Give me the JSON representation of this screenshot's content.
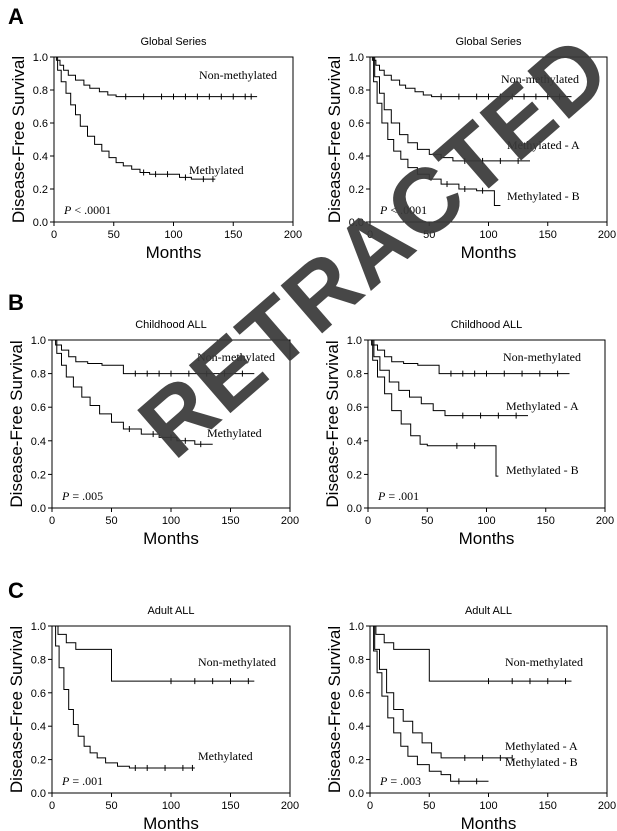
{
  "watermark": "RETRACTED",
  "sections": [
    {
      "letter": "A"
    },
    {
      "letter": "B"
    },
    {
      "letter": "C"
    }
  ],
  "axes": {
    "ylabel": "Disease-Free Survival",
    "xlabel": "Months",
    "xticks": [
      "0",
      "50",
      "100",
      "150",
      "200"
    ],
    "yticks": [
      "0.0",
      "0.2",
      "0.4",
      "0.6",
      "0.8",
      "1.0"
    ]
  },
  "chart_data": [
    {
      "type": "line",
      "title": "Global Series",
      "xlabel": "Months",
      "ylabel": "Disease-Free Survival",
      "xlim": [
        0,
        200
      ],
      "ylim": [
        0,
        1
      ],
      "annotation": {
        "prefix": "P",
        "text": " < .0001"
      },
      "series": [
        {
          "name": "Non-methylated",
          "x": [
            0,
            2,
            5,
            8,
            12,
            18,
            25,
            30,
            38,
            45,
            52,
            170
          ],
          "y": [
            1.0,
            0.98,
            0.95,
            0.92,
            0.89,
            0.86,
            0.83,
            0.81,
            0.79,
            0.77,
            0.76,
            0.76
          ],
          "censored": [
            60,
            75,
            90,
            100,
            110,
            120,
            130,
            140,
            150,
            160,
            165
          ]
        },
        {
          "name": "Methylated",
          "x": [
            0,
            3,
            6,
            10,
            14,
            18,
            22,
            28,
            34,
            40,
            46,
            52,
            58,
            65,
            72,
            80,
            90,
            105,
            115,
            135
          ],
          "y": [
            1.0,
            0.92,
            0.85,
            0.78,
            0.71,
            0.65,
            0.58,
            0.52,
            0.47,
            0.43,
            0.39,
            0.36,
            0.34,
            0.32,
            0.3,
            0.29,
            0.29,
            0.27,
            0.26,
            0.26
          ],
          "censored": [
            75,
            85,
            95,
            110,
            125,
            133
          ]
        }
      ]
    },
    {
      "type": "line",
      "title": "Global Series",
      "xlabel": "Months",
      "ylabel": "Disease-Free Survival",
      "xlim": [
        0,
        200
      ],
      "ylim": [
        0,
        1
      ],
      "annotation": {
        "prefix": "P",
        "text": " < .0001"
      },
      "series": [
        {
          "name": "Non-methylated",
          "x": [
            0,
            2,
            5,
            8,
            12,
            18,
            25,
            30,
            38,
            45,
            52,
            170
          ],
          "y": [
            1.0,
            0.98,
            0.95,
            0.92,
            0.89,
            0.86,
            0.83,
            0.81,
            0.79,
            0.77,
            0.76,
            0.76
          ],
          "censored": [
            60,
            75,
            90,
            100,
            110,
            120,
            130,
            140,
            150,
            160
          ]
        },
        {
          "name": "Methylated - A",
          "x": [
            0,
            4,
            8,
            12,
            18,
            25,
            32,
            40,
            50,
            60,
            70,
            135
          ],
          "y": [
            1.0,
            0.88,
            0.78,
            0.68,
            0.6,
            0.53,
            0.48,
            0.44,
            0.41,
            0.39,
            0.37,
            0.37
          ],
          "censored": [
            80,
            95,
            110,
            125
          ]
        },
        {
          "name": "Methylated - B",
          "x": [
            0,
            3,
            6,
            10,
            15,
            20,
            26,
            32,
            40,
            50,
            60,
            75,
            90,
            105,
            110
          ],
          "y": [
            1.0,
            0.85,
            0.72,
            0.6,
            0.5,
            0.43,
            0.38,
            0.33,
            0.29,
            0.26,
            0.23,
            0.2,
            0.19,
            0.1,
            0.1
          ],
          "censored": [
            65,
            80,
            95
          ]
        }
      ]
    },
    {
      "type": "line",
      "title": "Childhood ALL",
      "xlabel": "Months",
      "ylabel": "Disease-Free Survival",
      "xlim": [
        0,
        200
      ],
      "ylim": [
        0,
        1
      ],
      "annotation": {
        "prefix": "P",
        "text": " = .005"
      },
      "series": [
        {
          "name": "Non-methylated",
          "x": [
            0,
            3,
            8,
            14,
            20,
            30,
            42,
            60,
            170
          ],
          "y": [
            1.0,
            0.97,
            0.94,
            0.9,
            0.87,
            0.86,
            0.85,
            0.8,
            0.8
          ],
          "censored": [
            70,
            80,
            90,
            100,
            115,
            130,
            145,
            160
          ]
        },
        {
          "name": "Methylated",
          "x": [
            0,
            4,
            8,
            12,
            18,
            25,
            32,
            40,
            50,
            60,
            75,
            90,
            105,
            120,
            135
          ],
          "y": [
            1.0,
            0.92,
            0.85,
            0.78,
            0.72,
            0.66,
            0.61,
            0.56,
            0.51,
            0.47,
            0.44,
            0.42,
            0.4,
            0.38,
            0.38
          ],
          "censored": [
            65,
            85,
            100,
            112,
            125
          ]
        }
      ]
    },
    {
      "type": "line",
      "title": "Childhood ALL",
      "xlabel": "Months",
      "ylabel": "Disease-Free Survival",
      "xlim": [
        0,
        200
      ],
      "ylim": [
        0,
        1
      ],
      "annotation": {
        "prefix": "P",
        "text": " = .001"
      },
      "series": [
        {
          "name": "Non-methylated",
          "x": [
            0,
            3,
            8,
            14,
            20,
            30,
            42,
            60,
            170
          ],
          "y": [
            1.0,
            0.97,
            0.94,
            0.9,
            0.87,
            0.86,
            0.85,
            0.8,
            0.8
          ],
          "censored": [
            70,
            80,
            90,
            100,
            115,
            130,
            145,
            160
          ]
        },
        {
          "name": "Methylated - A",
          "x": [
            0,
            5,
            10,
            18,
            26,
            35,
            45,
            55,
            65,
            135
          ],
          "y": [
            1.0,
            0.9,
            0.82,
            0.75,
            0.7,
            0.66,
            0.62,
            0.58,
            0.55,
            0.55
          ],
          "censored": [
            80,
            95,
            110,
            125
          ]
        },
        {
          "name": "Methylated - B",
          "x": [
            0,
            4,
            8,
            14,
            20,
            28,
            36,
            44,
            50,
            60,
            108,
            110
          ],
          "y": [
            1.0,
            0.88,
            0.78,
            0.68,
            0.58,
            0.5,
            0.43,
            0.38,
            0.37,
            0.37,
            0.19,
            0.19
          ],
          "censored": [
            75,
            90
          ]
        }
      ]
    },
    {
      "type": "line",
      "title": "Adult ALL",
      "xlabel": "Months",
      "ylabel": "Disease-Free Survival",
      "xlim": [
        0,
        200
      ],
      "ylim": [
        0,
        1
      ],
      "annotation": {
        "prefix": "P",
        "text": " = .001"
      },
      "series": [
        {
          "name": "Non-methylated",
          "x": [
            0,
            5,
            12,
            20,
            45,
            50,
            170
          ],
          "y": [
            1.0,
            0.95,
            0.9,
            0.86,
            0.86,
            0.67,
            0.67
          ],
          "censored": [
            100,
            120,
            135,
            150,
            165
          ]
        },
        {
          "name": "Methylated",
          "x": [
            0,
            3,
            6,
            10,
            14,
            18,
            22,
            27,
            32,
            38,
            45,
            55,
            65,
            120
          ],
          "y": [
            1.0,
            0.88,
            0.75,
            0.62,
            0.5,
            0.41,
            0.34,
            0.28,
            0.24,
            0.21,
            0.18,
            0.16,
            0.15,
            0.15
          ],
          "censored": [
            70,
            80,
            95,
            110,
            118
          ]
        }
      ]
    },
    {
      "type": "line",
      "title": "Adult ALL",
      "xlabel": "Months",
      "ylabel": "Disease-Free Survival",
      "xlim": [
        0,
        200
      ],
      "ylim": [
        0,
        1
      ],
      "annotation": {
        "prefix": "P",
        "text": " = .003"
      },
      "series": [
        {
          "name": "Non-methylated",
          "x": [
            0,
            5,
            12,
            20,
            45,
            50,
            170
          ],
          "y": [
            1.0,
            0.95,
            0.9,
            0.86,
            0.86,
            0.67,
            0.67
          ],
          "censored": [
            100,
            120,
            135,
            150,
            165
          ]
        },
        {
          "name": "Methylated - A",
          "x": [
            0,
            4,
            8,
            14,
            20,
            28,
            36,
            44,
            52,
            60,
            120
          ],
          "y": [
            1.0,
            0.86,
            0.74,
            0.6,
            0.5,
            0.43,
            0.36,
            0.3,
            0.24,
            0.21,
            0.21
          ],
          "censored": [
            80,
            95,
            110,
            120
          ]
        },
        {
          "name": "Methylated - B",
          "x": [
            0,
            3,
            6,
            10,
            15,
            20,
            26,
            32,
            40,
            50,
            60,
            68,
            100
          ],
          "y": [
            1.0,
            0.85,
            0.72,
            0.58,
            0.45,
            0.36,
            0.28,
            0.22,
            0.17,
            0.13,
            0.11,
            0.07,
            0.07
          ],
          "censored": [
            75,
            90
          ]
        }
      ]
    }
  ]
}
